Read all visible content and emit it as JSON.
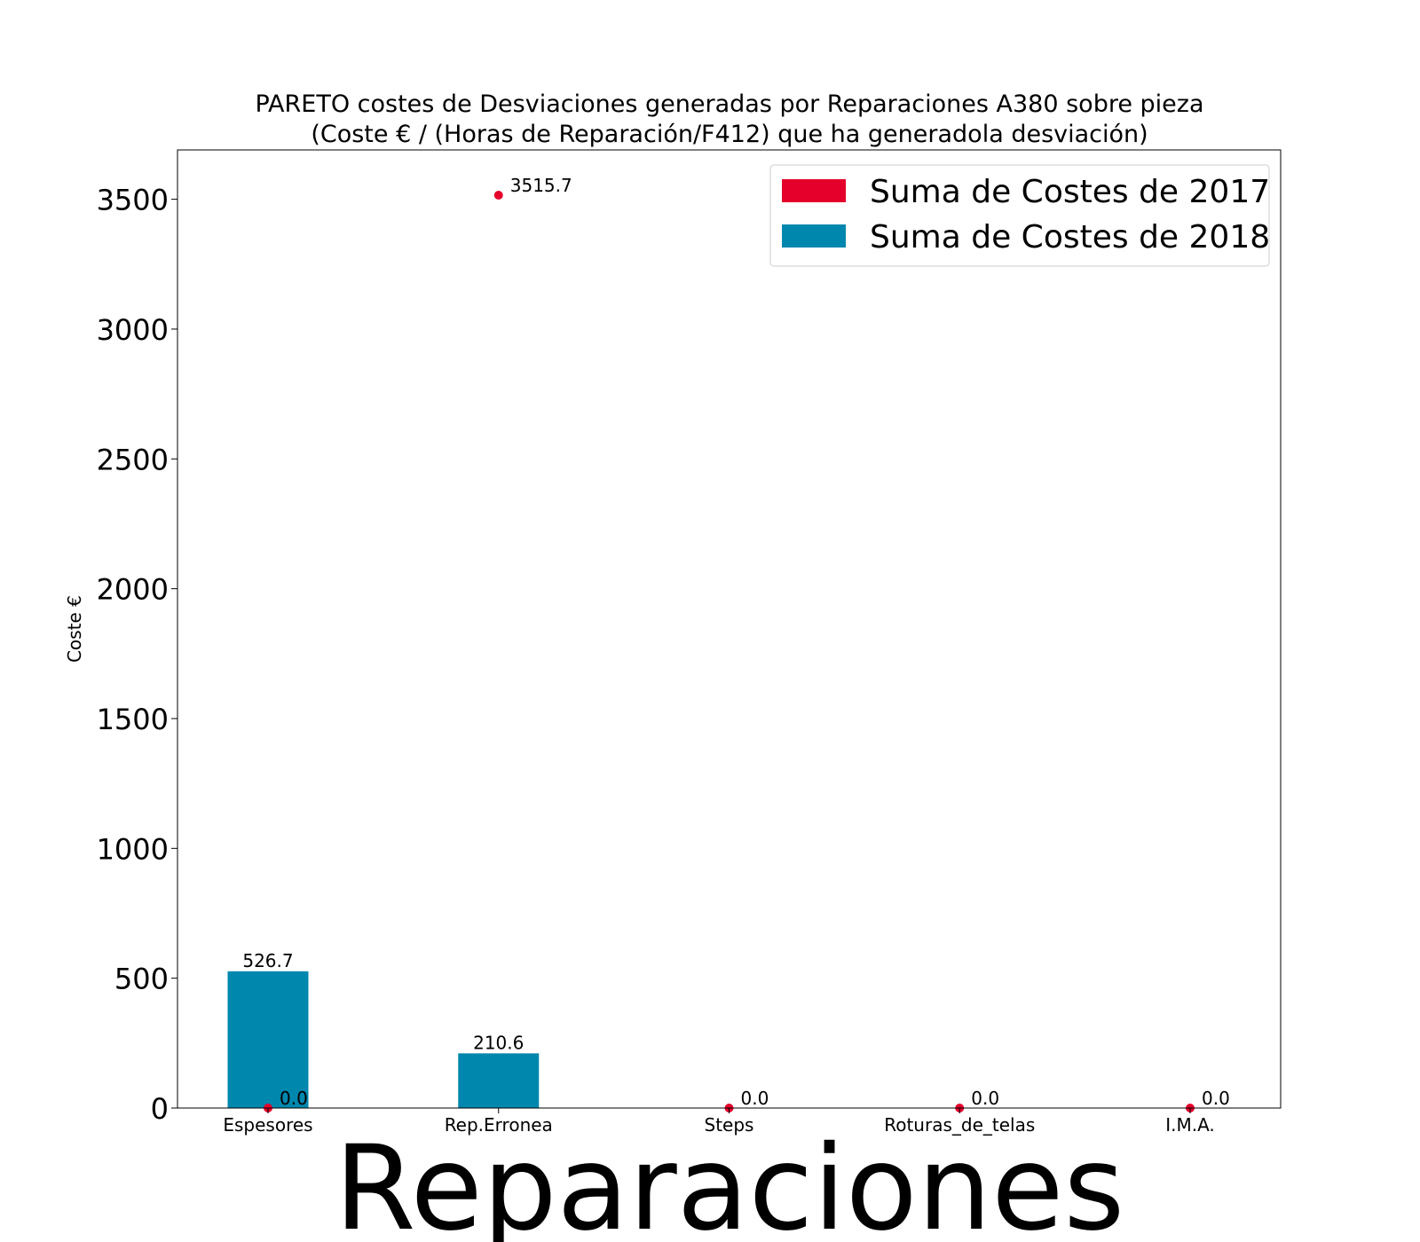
{
  "chart_data": {
    "type": "bar",
    "title": [
      "PARETO costes de Desviaciones  generadas  por Reparaciones A380 sobre pieza",
      "(Coste € / (Horas de Reparación/F412) que ha generadola desviación)"
    ],
    "xlabel": "Reparaciones",
    "ylabel": "Coste €",
    "categories": [
      "Espesores",
      "Rep.Erronea",
      "Steps",
      "Roturas_de_telas",
      "I.M.A."
    ],
    "ylim": [
      0,
      3690
    ],
    "yticks": [
      0,
      500,
      1000,
      1500,
      2000,
      2500,
      3000,
      3500
    ],
    "grid": false,
    "legend_position": "top-right",
    "series": [
      {
        "name": "Suma de Costes de 2017",
        "render": "points",
        "color": "#e4002b",
        "values": [
          0.0,
          3515.7,
          0.0,
          0.0,
          0.0
        ],
        "labels": [
          "0.0",
          "3515.7",
          "0.0",
          "0.0",
          "0.0"
        ]
      },
      {
        "name": "Suma de Costes de 2018",
        "render": "bars",
        "color": "#0087ae",
        "values": [
          526.7,
          210.6,
          null,
          null,
          null
        ],
        "labels": [
          "526.7",
          "210.6",
          null,
          null,
          null
        ]
      }
    ]
  }
}
